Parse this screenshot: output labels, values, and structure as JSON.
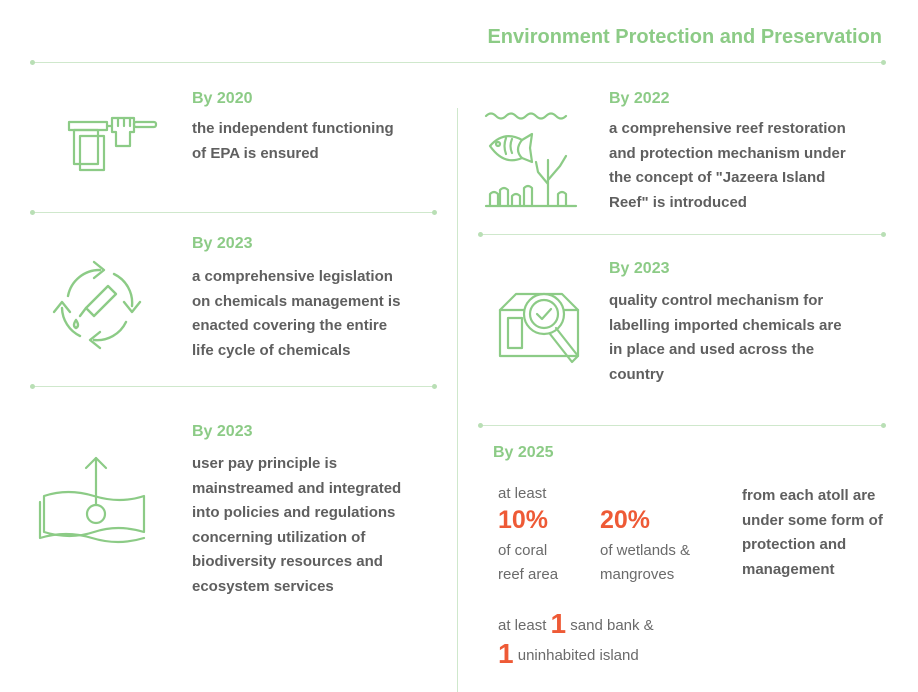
{
  "header": {
    "title": "Environment Protection and Preservation"
  },
  "colors": {
    "accent_green": "#8ccb86",
    "highlight_orange": "#ee5a36",
    "text_gray": "#5f5f5f"
  },
  "targets_left": [
    {
      "icon": "document-holding-hand-icon",
      "year": "By 2020",
      "lines": [
        "the independent functioning",
        "of EPA is ensured"
      ]
    },
    {
      "icon": "chemical-recycle-icon",
      "year": "By 2023",
      "lines": [
        "a comprehensive legislation",
        "on chemicals management is",
        "enacted covering the entire",
        "life cycle of chemicals"
      ]
    },
    {
      "icon": "money-upload-icon",
      "year": "By 2023",
      "lines": [
        "user pay principle is",
        "mainstreamed and integrated",
        "into policies and regulations",
        "concerning utilization of",
        "biodiversity resources and",
        "ecosystem services"
      ]
    }
  ],
  "targets_right": [
    {
      "icon": "reef-fish-icon",
      "year": "By 2022",
      "lines": [
        "a comprehensive reef restoration",
        "and protection mechanism under",
        "the concept of \"Jazeera Island",
        "Reef\" is introduced"
      ]
    },
    {
      "icon": "box-magnifier-check-icon",
      "year": "By 2023",
      "lines": [
        "quality control mechanism for",
        "labelling imported chemicals are",
        "in place and used across the",
        "country"
      ]
    }
  ],
  "target_2025": {
    "year": "By 2025",
    "coral": {
      "prefix": "at least",
      "value": "10%",
      "label_lines": [
        "of coral",
        "reef area"
      ]
    },
    "wetlands": {
      "value": "20%",
      "label_lines": [
        "of wetlands &",
        "mangroves"
      ]
    },
    "atoll_lines": [
      "from each atoll are",
      "under some form of",
      "protection and",
      "management"
    ],
    "sandbank": {
      "prefix": "at least",
      "count": "1",
      "label": "sand bank &"
    },
    "island": {
      "count": "1",
      "label": "uninhabited island"
    }
  }
}
